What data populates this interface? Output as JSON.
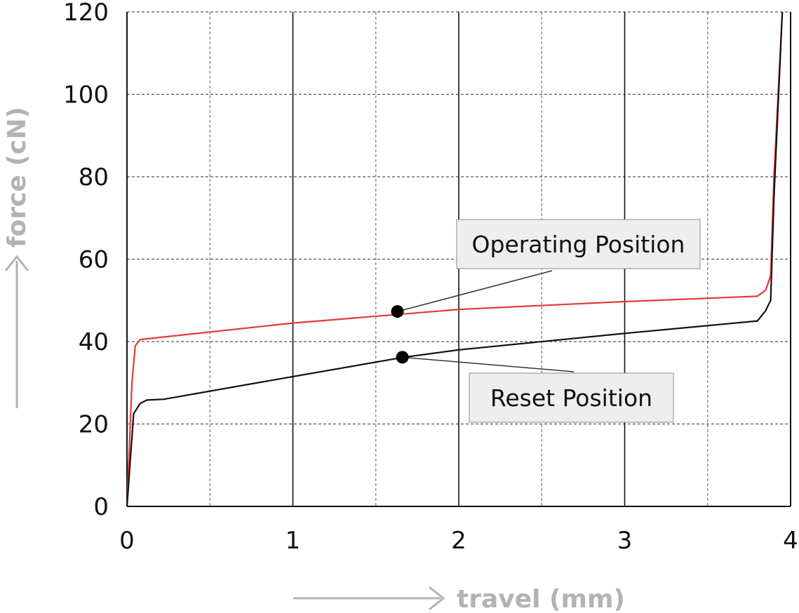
{
  "chart_data": {
    "type": "line",
    "xlabel": "travel (mm)",
    "ylabel": "force (cN)",
    "xlim": [
      0,
      4
    ],
    "ylim": [
      0,
      120
    ],
    "x_ticks": [
      "0",
      "1",
      "2",
      "3",
      "4"
    ],
    "y_ticks": [
      "0",
      "20",
      "40",
      "60",
      "80",
      "100",
      "120"
    ],
    "x_major_ticks": [
      0,
      1,
      2,
      3,
      4
    ],
    "x_minor_ticks": [
      0.5,
      1.5,
      2.5,
      3.5
    ],
    "y_gridlines": [
      20,
      40,
      60,
      80,
      100,
      120
    ],
    "grid": true,
    "series": [
      {
        "color": "#e53935",
        "x": [
          0,
          0.03,
          0.05,
          0.08,
          1.0,
          2.0,
          3.0,
          3.8,
          3.85,
          3.88,
          3.9,
          3.95
        ],
        "y": [
          0,
          30,
          39,
          40.5,
          44.5,
          47.8,
          49.7,
          51,
          52.5,
          56,
          80,
          120
        ]
      },
      {
        "color": "#111111",
        "x": [
          0,
          0.04,
          0.08,
          0.12,
          0.22,
          1.0,
          1.67,
          2.0,
          3.0,
          3.8,
          3.85,
          3.88,
          3.9,
          3.95
        ],
        "y": [
          0,
          22.5,
          25,
          25.8,
          26,
          31.5,
          36.2,
          38,
          42,
          45,
          47.5,
          50,
          75,
          120
        ]
      }
    ],
    "annotations": [
      {
        "text": "Operating Position",
        "x": 1.63,
        "y": 47.3
      },
      {
        "text": "Reset Position",
        "x": 1.66,
        "y": 36.2
      }
    ]
  }
}
